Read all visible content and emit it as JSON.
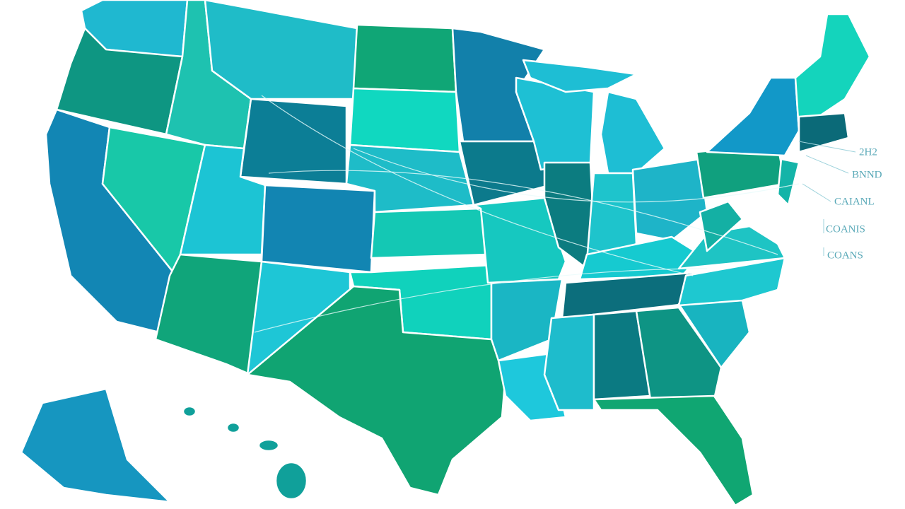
{
  "annotations": [
    "2H2",
    "BNND",
    "CAIANL",
    "COANIS",
    "COANS"
  ]
}
